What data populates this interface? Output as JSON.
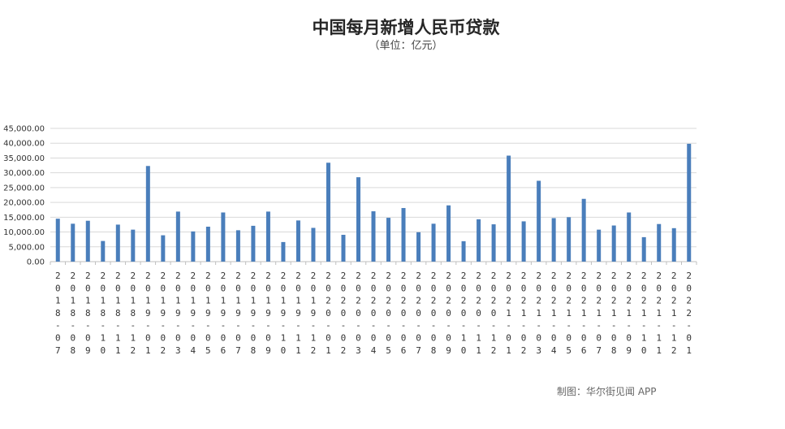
{
  "credit": "制图：华尔街见闻 APP",
  "chart_data": {
    "type": "bar",
    "title": "中国每月新增人民币贷款",
    "subtitle": "（单位：亿元）",
    "xlabel": "",
    "ylabel": "",
    "ylim": [
      0,
      45000
    ],
    "yticks": [
      "0.00",
      "5,000.00",
      "10,000.00",
      "15,000.00",
      "20,000.00",
      "25,000.00",
      "30,000.00",
      "35,000.00",
      "40,000.00",
      "45,000.00"
    ],
    "grid": true,
    "bar_color": "#4a7ebb",
    "categories": [
      "2018-07",
      "2018-08",
      "2018-09",
      "2018-10",
      "2018-11",
      "2018-12",
      "2019-01",
      "2019-02",
      "2019-03",
      "2019-04",
      "2019-05",
      "2019-06",
      "2019-07",
      "2019-08",
      "2019-09",
      "2019-10",
      "2019-11",
      "2019-12",
      "2020-01",
      "2020-02",
      "2020-03",
      "2020-04",
      "2020-05",
      "2020-06",
      "2020-07",
      "2020-08",
      "2020-09",
      "2020-10",
      "2020-11",
      "2020-12",
      "2021-01",
      "2021-02",
      "2021-03",
      "2021-04",
      "2021-05",
      "2021-06",
      "2021-07",
      "2021-08",
      "2021-09",
      "2021-10",
      "2021-11",
      "2021-12",
      "2022-01"
    ],
    "values": [
      14500,
      12800,
      13800,
      6970,
      12500,
      10800,
      32300,
      8900,
      16900,
      10200,
      11800,
      16600,
      10600,
      12100,
      16900,
      6613,
      13900,
      11400,
      33400,
      9057,
      28500,
      17000,
      14800,
      18100,
      9927,
      12800,
      19000,
      6898,
      14300,
      12600,
      35800,
      13600,
      27300,
      14700,
      15000,
      21200,
      10800,
      12200,
      16600,
      8262,
      12700,
      11300,
      39800
    ]
  }
}
